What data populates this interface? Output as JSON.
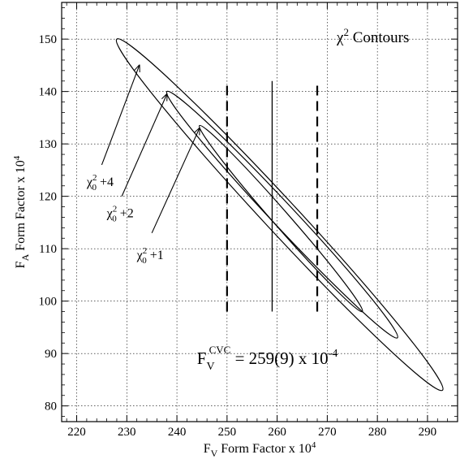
{
  "chart_data": {
    "type": "contour",
    "title": "χ² Contours",
    "xlabel": {
      "main": "F",
      "sub": "V",
      "rest": " Form Factor x 10",
      "sup": "4"
    },
    "ylabel": {
      "main": "F",
      "sub": "A",
      "rest": " Form Factor x 10",
      "sup": "4"
    },
    "xlim": [
      217,
      296
    ],
    "ylim": [
      77,
      157
    ],
    "x_ticks": [
      220,
      230,
      240,
      250,
      260,
      270,
      280,
      290
    ],
    "y_ticks": [
      80,
      90,
      100,
      110,
      120,
      130,
      140,
      150
    ],
    "grid": true,
    "contours": [
      {
        "level": "χ₀² +1",
        "endpoints": [
          [
            244.5,
            133.5
          ],
          [
            277,
            98
          ]
        ],
        "half_width": 1.6
      },
      {
        "level": "χ₀² +2",
        "endpoints": [
          [
            238,
            140
          ],
          [
            284,
            93
          ]
        ],
        "half_width": 2.3
      },
      {
        "level": "χ₀² +4",
        "endpoints": [
          [
            228,
            150
          ],
          [
            293,
            83
          ]
        ],
        "half_width": 3.3
      }
    ],
    "annotations": [
      {
        "label": {
          "base": "χ",
          "sup": "2",
          "sub": "0",
          "rest": " +4"
        },
        "text_at": [
          222,
          122
        ],
        "arrow_from": [
          225,
          126
        ],
        "arrow_to": [
          232.5,
          145
        ]
      },
      {
        "label": {
          "base": "χ",
          "sup": "2",
          "sub": "0",
          "rest": " +2"
        },
        "text_at": [
          226,
          116
        ],
        "arrow_from": [
          229,
          120
        ],
        "arrow_to": [
          238,
          139.5
        ]
      },
      {
        "label": {
          "base": "χ",
          "sup": "2",
          "sub": "0",
          "rest": " +1"
        },
        "text_at": [
          232,
          108
        ],
        "arrow_from": [
          235,
          113
        ],
        "arrow_to": [
          244.5,
          133
        ]
      }
    ],
    "cvc": {
      "value": 259,
      "error": 9,
      "y_range": [
        98,
        142
      ],
      "label": {
        "main": "F",
        "sub": "V",
        "sup": "CVC",
        "rest": " = 259(9) x 10",
        "exp": "-4"
      },
      "label_at": [
        244,
        88
      ]
    }
  }
}
